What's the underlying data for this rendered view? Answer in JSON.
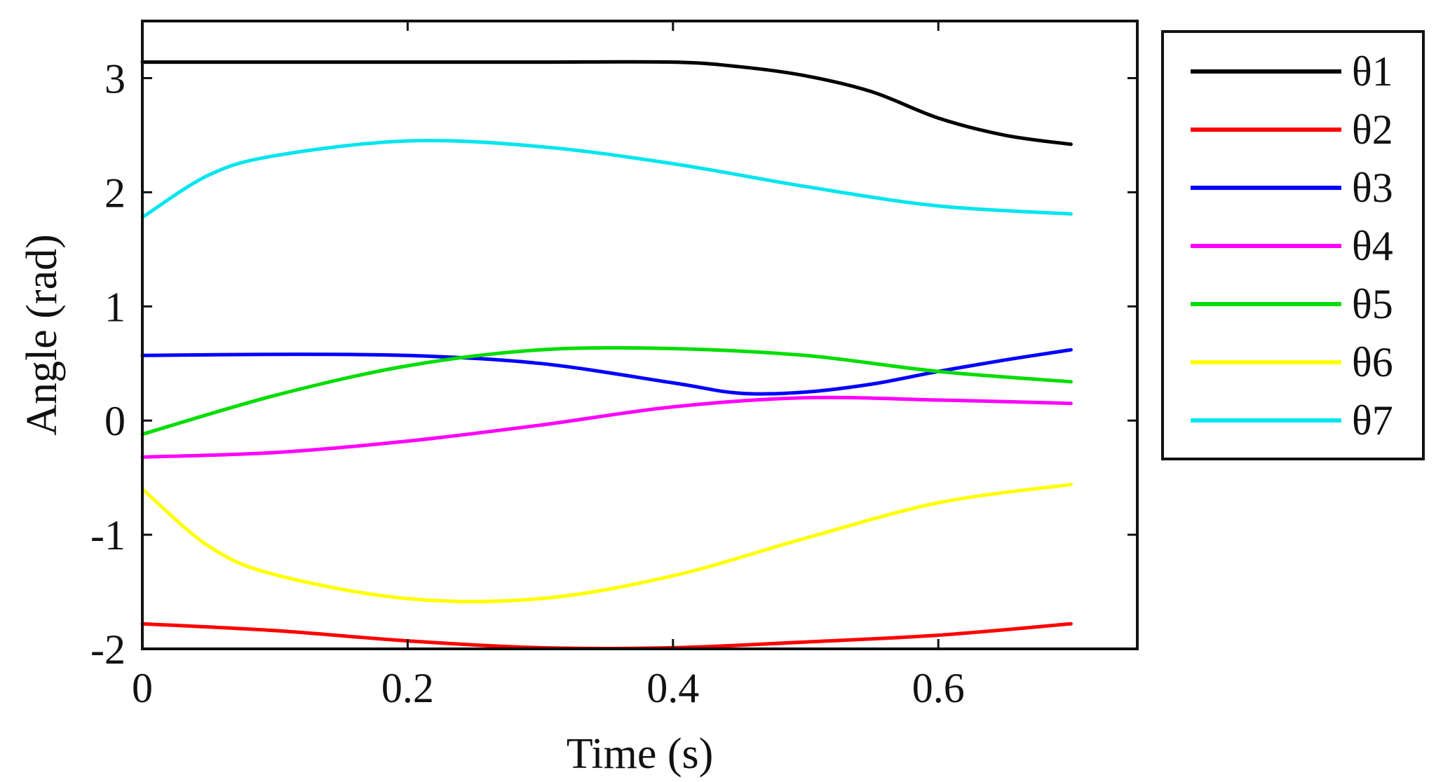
{
  "chart_data": {
    "type": "line",
    "title": "",
    "xlabel": "Time (s)",
    "ylabel": "Angle (rad)",
    "xlim": [
      0,
      0.75
    ],
    "ylim": [
      -2,
      3.5
    ],
    "xticks": [
      0,
      0.2,
      0.4,
      0.6
    ],
    "xtick_labels": [
      "0",
      "0.2",
      "0.4",
      "0.6"
    ],
    "yticks": [
      -2,
      -1,
      0,
      1,
      2,
      3
    ],
    "ytick_labels": [
      "-2",
      "-1",
      "0",
      "1",
      "2",
      "3"
    ],
    "grid": false,
    "legend_position": "right-outside-top",
    "series": [
      {
        "name": "θ1",
        "color": "#000000",
        "x": [
          0,
          0.1,
          0.2,
          0.3,
          0.4,
          0.45,
          0.5,
          0.55,
          0.6,
          0.65,
          0.7
        ],
        "y": [
          3.14,
          3.14,
          3.14,
          3.14,
          3.14,
          3.1,
          3.02,
          2.88,
          2.65,
          2.5,
          2.42
        ]
      },
      {
        "name": "θ2",
        "color": "#ff0000",
        "x": [
          0,
          0.1,
          0.2,
          0.3,
          0.4,
          0.5,
          0.6,
          0.7
        ],
        "y": [
          -1.78,
          -1.84,
          -1.93,
          -1.99,
          -1.99,
          -1.94,
          -1.88,
          -1.78
        ]
      },
      {
        "name": "θ3",
        "color": "#0000ff",
        "x": [
          0,
          0.1,
          0.2,
          0.3,
          0.4,
          0.45,
          0.5,
          0.55,
          0.6,
          0.65,
          0.7
        ],
        "y": [
          0.57,
          0.58,
          0.57,
          0.5,
          0.33,
          0.24,
          0.25,
          0.32,
          0.43,
          0.53,
          0.62
        ]
      },
      {
        "name": "θ4",
        "color": "#ff00ff",
        "x": [
          0,
          0.1,
          0.2,
          0.3,
          0.4,
          0.5,
          0.6,
          0.7
        ],
        "y": [
          -0.32,
          -0.28,
          -0.18,
          -0.04,
          0.12,
          0.2,
          0.18,
          0.15
        ]
      },
      {
        "name": "θ5",
        "color": "#00dd00",
        "x": [
          0,
          0.1,
          0.2,
          0.3,
          0.4,
          0.5,
          0.6,
          0.7
        ],
        "y": [
          -0.12,
          0.22,
          0.48,
          0.62,
          0.63,
          0.57,
          0.43,
          0.34
        ]
      },
      {
        "name": "θ6",
        "color": "#ffff00",
        "x": [
          0,
          0.05,
          0.1,
          0.2,
          0.3,
          0.4,
          0.5,
          0.6,
          0.7
        ],
        "y": [
          -0.6,
          -1.1,
          -1.35,
          -1.56,
          -1.56,
          -1.36,
          -1.03,
          -0.72,
          -0.56
        ]
      },
      {
        "name": "θ7",
        "color": "#00e5ee",
        "x": [
          0,
          0.05,
          0.1,
          0.2,
          0.3,
          0.4,
          0.5,
          0.6,
          0.7
        ],
        "y": [
          1.78,
          2.15,
          2.32,
          2.45,
          2.4,
          2.25,
          2.05,
          1.88,
          1.81
        ]
      }
    ]
  }
}
